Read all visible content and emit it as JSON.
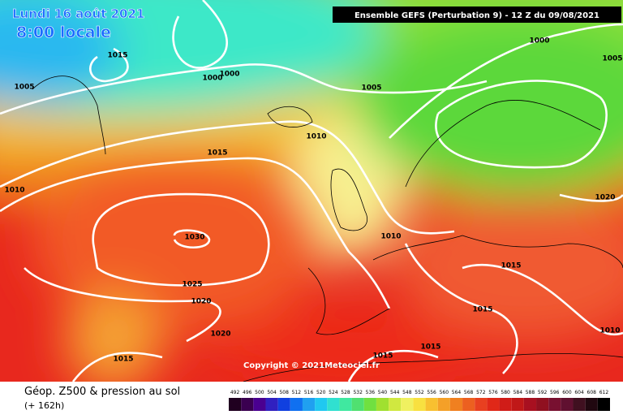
{
  "header": {
    "date": "Lundi 16 août 2021",
    "time": "8:00 locale",
    "run": "Ensemble GEFS  (Perturbation 9)  -  12 Z du 09/08/2021"
  },
  "footer": {
    "title": "Géop. Z500 & pression au sol",
    "subtitle": "(+ 162h)",
    "copyright": "Copyright © 2021Meteociel.fr"
  },
  "colorbar": {
    "labels": [
      "492",
      "496",
      "500",
      "504",
      "508",
      "512",
      "516",
      "520",
      "524",
      "528",
      "532",
      "536",
      "540",
      "544",
      "548",
      "552",
      "556",
      "560",
      "564",
      "568",
      "572",
      "576",
      "580",
      "584",
      "588",
      "592",
      "596",
      "600",
      "604",
      "608",
      "612"
    ]
  },
  "isobars": {
    "labels": [
      "1015",
      "1005",
      "1000",
      "1000",
      "1005",
      "1000",
      "1005",
      "1010",
      "1015",
      "1010",
      "1020",
      "1030",
      "1010",
      "1015",
      "1025",
      "1020",
      "1015",
      "1010",
      "1020",
      "1015",
      "1015",
      "1015"
    ]
  }
}
